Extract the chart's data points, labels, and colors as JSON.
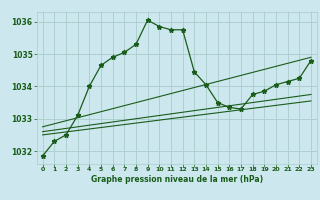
{
  "title": "Graphe pression niveau de la mer (hPa)",
  "bg_color": "#cce8ee",
  "grid_color": "#aacccc",
  "line_color": "#1a5c1a",
  "xlim": [
    -0.5,
    23.5
  ],
  "ylim": [
    1031.6,
    1036.3
  ],
  "yticks": [
    1032,
    1033,
    1034,
    1035,
    1036
  ],
  "xticks": [
    0,
    1,
    2,
    3,
    4,
    5,
    6,
    7,
    8,
    9,
    10,
    11,
    12,
    13,
    14,
    15,
    16,
    17,
    18,
    19,
    20,
    21,
    22,
    23
  ],
  "main_line": {
    "x": [
      0,
      1,
      2,
      3,
      4,
      5,
      6,
      7,
      8,
      9,
      10,
      11,
      12,
      13,
      14,
      15,
      16,
      17,
      18,
      19,
      20,
      21,
      22,
      23
    ],
    "y": [
      1031.85,
      1032.3,
      1032.5,
      1033.1,
      1034.0,
      1034.65,
      1034.9,
      1035.05,
      1035.3,
      1036.05,
      1035.85,
      1035.75,
      1035.75,
      1034.45,
      1034.05,
      1033.5,
      1033.35,
      1033.3,
      1033.75,
      1033.85,
      1034.05,
      1034.15,
      1034.25,
      1034.8
    ]
  },
  "trend1": {
    "x": [
      0,
      23
    ],
    "y": [
      1032.5,
      1033.55
    ]
  },
  "trend2": {
    "x": [
      0,
      23
    ],
    "y": [
      1032.6,
      1033.75
    ]
  },
  "trend3": {
    "x": [
      0,
      23
    ],
    "y": [
      1032.75,
      1034.9
    ]
  }
}
